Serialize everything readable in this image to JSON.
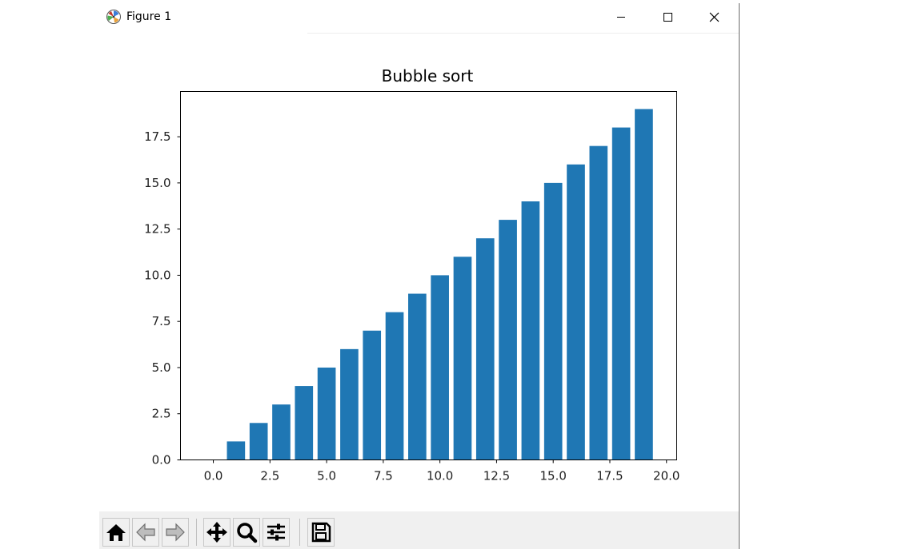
{
  "window": {
    "title": "Figure 1",
    "icon": "matplotlib-logo-icon",
    "controls": [
      "minimize-icon",
      "maximize-icon",
      "close-icon"
    ]
  },
  "toolbar": {
    "buttons": [
      "home-icon",
      "back-arrow-icon",
      "forward-arrow-icon",
      "pan-icon",
      "zoom-icon",
      "subplots-config-icon",
      "save-icon"
    ]
  },
  "colors": {
    "bar": "#1f77b4",
    "toolbar_bg": "#f0f0f0",
    "axes": "#000000"
  },
  "chart_data": {
    "type": "bar",
    "title": "Bubble sort",
    "xlabel": "",
    "ylabel": "",
    "x": [
      0,
      1,
      2,
      3,
      4,
      5,
      6,
      7,
      8,
      9,
      10,
      11,
      12,
      13,
      14,
      15,
      16,
      17,
      18,
      19
    ],
    "values": [
      0,
      1,
      2,
      3,
      4,
      5,
      6,
      7,
      8,
      9,
      10,
      11,
      12,
      13,
      14,
      15,
      16,
      17,
      18,
      19
    ],
    "xlim": [
      -1.45,
      20.45
    ],
    "ylim": [
      0,
      19.95
    ],
    "xticks": [
      0,
      2.5,
      5,
      7.5,
      10,
      12.5,
      15,
      17.5,
      20
    ],
    "xtick_labels": [
      "0.0",
      "2.5",
      "5.0",
      "7.5",
      "10.0",
      "12.5",
      "15.0",
      "17.5",
      "20.0"
    ],
    "yticks": [
      0,
      2.5,
      5,
      7.5,
      10,
      12.5,
      15,
      17.5
    ],
    "ytick_labels": [
      "0.0",
      "2.5",
      "5.0",
      "7.5",
      "10.0",
      "12.5",
      "15.0",
      "17.5"
    ],
    "grid": false,
    "legend": "none"
  }
}
